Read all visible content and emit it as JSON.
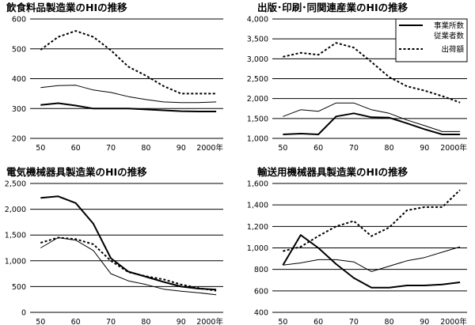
{
  "chart_data": [
    {
      "type": "line",
      "title": "飲食料品製造業のHIの推移",
      "ylim": [
        200,
        600
      ],
      "yticks": [
        "200",
        "300",
        "400",
        "500",
        "600"
      ],
      "xticks": [
        "50",
        "60",
        "70",
        "80",
        "90",
        "2000年"
      ],
      "series": [
        {
          "name": "事業所数",
          "style": "thick",
          "x": [
            1950,
            1955,
            1960,
            1965,
            1970,
            1975,
            1980,
            1985,
            1990,
            1995,
            2000
          ],
          "values": [
            312,
            318,
            310,
            300,
            300,
            300,
            297,
            294,
            291,
            290,
            290
          ]
        },
        {
          "name": "従業者数",
          "style": "thin",
          "x": [
            1950,
            1955,
            1960,
            1965,
            1970,
            1975,
            1980,
            1985,
            1990,
            1995,
            2000
          ],
          "values": [
            370,
            377,
            378,
            362,
            354,
            340,
            330,
            322,
            320,
            320,
            322
          ]
        },
        {
          "name": "出荷額",
          "style": "dotted",
          "x": [
            1950,
            1955,
            1960,
            1965,
            1970,
            1975,
            1980,
            1985,
            1990,
            1995,
            2000
          ],
          "values": [
            497,
            540,
            560,
            540,
            495,
            440,
            410,
            375,
            350,
            350,
            350
          ]
        }
      ]
    },
    {
      "type": "line",
      "title": "出版･印刷･同関連産業のHIの推移",
      "ylim": [
        1000,
        4000
      ],
      "yticks": [
        "1,000",
        "1,500",
        "2,000",
        "2,500",
        "3,000",
        "3,500",
        "4,000"
      ],
      "xticks": [
        "50",
        "60",
        "70",
        "80",
        "90",
        "2000年"
      ],
      "legend": {
        "position": "top-right",
        "items": [
          "事業所数",
          "従業者数",
          "出荷額"
        ]
      },
      "series": [
        {
          "name": "事業所数",
          "style": "thick",
          "x": [
            1950,
            1955,
            1960,
            1965,
            1970,
            1975,
            1980,
            1985,
            1990,
            1995,
            2000
          ],
          "values": [
            1100,
            1120,
            1100,
            1550,
            1630,
            1530,
            1520,
            1380,
            1230,
            1100,
            1100
          ]
        },
        {
          "name": "従業者数",
          "style": "thin",
          "x": [
            1950,
            1955,
            1960,
            1965,
            1970,
            1975,
            1980,
            1985,
            1990,
            1995,
            2000
          ],
          "values": [
            1550,
            1720,
            1680,
            1890,
            1890,
            1720,
            1630,
            1460,
            1320,
            1170,
            1170
          ]
        },
        {
          "name": "出荷額",
          "style": "dotted",
          "x": [
            1950,
            1955,
            1960,
            1965,
            1970,
            1975,
            1980,
            1985,
            1990,
            1995,
            2000
          ],
          "values": [
            3050,
            3150,
            3100,
            3400,
            3280,
            2920,
            2540,
            2310,
            2200,
            2060,
            1900
          ]
        }
      ]
    },
    {
      "type": "line",
      "title": "電気機械器具製造業のHIの推移",
      "ylim": [
        0,
        2500
      ],
      "yticks": [
        "0",
        "500",
        "1,000",
        "1,500",
        "2,000",
        "2,500"
      ],
      "xticks": [
        "50",
        "60",
        "70",
        "80",
        "90",
        "2000年"
      ],
      "series": [
        {
          "name": "事業所数",
          "style": "thick",
          "x": [
            1950,
            1955,
            1960,
            1965,
            1970,
            1975,
            1980,
            1985,
            1990,
            1995,
            2000
          ],
          "values": [
            2220,
            2250,
            2120,
            1720,
            1050,
            790,
            690,
            590,
            500,
            460,
            440
          ]
        },
        {
          "name": "従業者数",
          "style": "thin",
          "x": [
            1950,
            1955,
            1960,
            1965,
            1970,
            1975,
            1980,
            1985,
            1990,
            1995,
            2000
          ],
          "values": [
            1250,
            1450,
            1400,
            1200,
            750,
            610,
            540,
            450,
            410,
            380,
            340
          ]
        },
        {
          "name": "出荷額",
          "style": "dotted",
          "x": [
            1950,
            1955,
            1960,
            1965,
            1970,
            1975,
            1980,
            1985,
            1990,
            1995,
            2000
          ],
          "values": [
            1350,
            1450,
            1420,
            1320,
            1000,
            780,
            700,
            640,
            540,
            470,
            420
          ]
        }
      ]
    },
    {
      "type": "line",
      "title": "輸送用機械器具製造業のHIの推移",
      "ylim": [
        400,
        1600
      ],
      "yticks": [
        "400",
        "600",
        "800",
        "1,000",
        "1,200",
        "1,400",
        "1,600"
      ],
      "xticks": [
        "50",
        "60",
        "70",
        "80",
        "90",
        "2000年"
      ],
      "series": [
        {
          "name": "事業所数",
          "style": "thick",
          "x": [
            1950,
            1955,
            1960,
            1965,
            1970,
            1975,
            1980,
            1985,
            1990,
            1995,
            2000
          ],
          "values": [
            840,
            1120,
            1000,
            850,
            720,
            630,
            630,
            650,
            650,
            660,
            680
          ]
        },
        {
          "name": "従業者数",
          "style": "thin",
          "x": [
            1950,
            1955,
            1960,
            1965,
            1970,
            1975,
            1980,
            1985,
            1990,
            1995,
            2000
          ],
          "values": [
            840,
            860,
            890,
            890,
            870,
            780,
            830,
            880,
            910,
            960,
            1010
          ]
        },
        {
          "name": "出荷額",
          "style": "dotted",
          "x": [
            1950,
            1955,
            1960,
            1965,
            1970,
            1975,
            1980,
            1985,
            1990,
            1995,
            2000
          ],
          "values": [
            970,
            1010,
            1110,
            1200,
            1250,
            1110,
            1190,
            1350,
            1380,
            1380,
            1540
          ]
        }
      ]
    }
  ]
}
